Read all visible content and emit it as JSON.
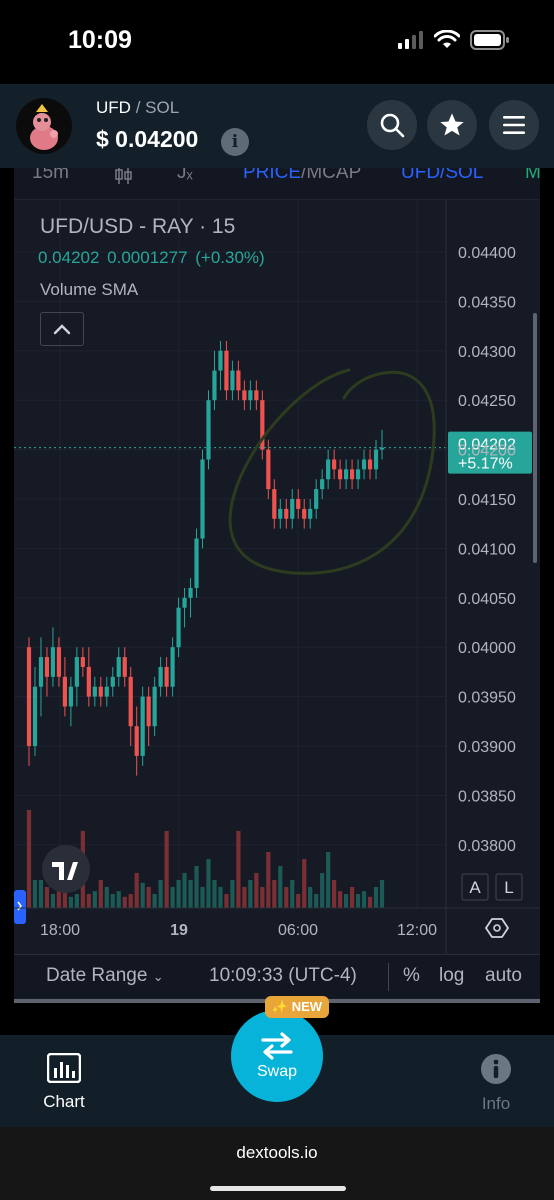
{
  "status": {
    "time": "10:09"
  },
  "header": {
    "pair_symbol": "UFD",
    "pair_separator": "/",
    "pair_quote": "SOL",
    "price": "$ 0.04200",
    "info_glyph": "i",
    "buttons": [
      "search-icon",
      "star-icon",
      "menu-icon"
    ]
  },
  "toolbar": {
    "interval": "15m",
    "indicators_glyph": "Jₓ",
    "price_label": "PRICE",
    "mcap_separator": "/MCAP",
    "pair_toggle": "UFD/SOL",
    "more_label": "M"
  },
  "chart": {
    "title": "UFD/USD - RAY · 15",
    "ohlc": "0.04202  0.0001277  (+0.30%)",
    "study": "Volume SMA",
    "last_price": "0.04202",
    "last_change": "+5.17%",
    "price_scale_buttons": [
      "A",
      "L"
    ]
  },
  "chart_data": {
    "type": "candlestick",
    "title": "UFD/USD - RAY · 15",
    "y_ticks": [
      "0.04400",
      "0.04350",
      "0.04300",
      "0.04250",
      "0.04200",
      "0.04150",
      "0.04100",
      "0.04050",
      "0.04000",
      "0.03950",
      "0.03900",
      "0.03850",
      "0.03800"
    ],
    "x_ticks": [
      "18:00",
      "19",
      "06:00",
      "12:00"
    ],
    "ylim": [
      0.0376,
      0.0446
    ],
    "last_value": 0.04202,
    "colors": {
      "up": "#26a69a",
      "down": "#ef5350",
      "annotation": "#2e3b1e"
    },
    "candles": [
      [
        0.04,
        0.0401,
        0.0388,
        0.039
      ],
      [
        0.039,
        0.0398,
        0.0389,
        0.0396
      ],
      [
        0.0396,
        0.0401,
        0.0393,
        0.0399
      ],
      [
        0.0399,
        0.04,
        0.0395,
        0.0397
      ],
      [
        0.0397,
        0.0402,
        0.0396,
        0.04
      ],
      [
        0.04,
        0.0401,
        0.0396,
        0.0397
      ],
      [
        0.0397,
        0.0399,
        0.0393,
        0.0394
      ],
      [
        0.0394,
        0.0397,
        0.0392,
        0.0396
      ],
      [
        0.0396,
        0.04,
        0.0394,
        0.0399
      ],
      [
        0.0399,
        0.04,
        0.0397,
        0.0398
      ],
      [
        0.0398,
        0.04,
        0.0394,
        0.0395
      ],
      [
        0.0395,
        0.0397,
        0.0394,
        0.0396
      ],
      [
        0.0396,
        0.0397,
        0.0394,
        0.0395
      ],
      [
        0.0395,
        0.0397,
        0.0394,
        0.0396
      ],
      [
        0.0396,
        0.0398,
        0.0395,
        0.0397
      ],
      [
        0.0397,
        0.04,
        0.0396,
        0.0399
      ],
      [
        0.0399,
        0.04,
        0.0396,
        0.0397
      ],
      [
        0.0397,
        0.0398,
        0.039,
        0.0392
      ],
      [
        0.0392,
        0.0394,
        0.0387,
        0.0389
      ],
      [
        0.0389,
        0.0396,
        0.0388,
        0.0395
      ],
      [
        0.0395,
        0.0396,
        0.039,
        0.0392
      ],
      [
        0.0392,
        0.0397,
        0.0391,
        0.0396
      ],
      [
        0.0396,
        0.0399,
        0.0395,
        0.0398
      ],
      [
        0.0398,
        0.0399,
        0.0395,
        0.0396
      ],
      [
        0.0396,
        0.0401,
        0.0395,
        0.04
      ],
      [
        0.04,
        0.0405,
        0.0399,
        0.0404
      ],
      [
        0.0404,
        0.0406,
        0.0402,
        0.0405
      ],
      [
        0.0405,
        0.0407,
        0.0403,
        0.0406
      ],
      [
        0.0406,
        0.0412,
        0.0405,
        0.0411
      ],
      [
        0.0411,
        0.042,
        0.041,
        0.0419
      ],
      [
        0.0419,
        0.0426,
        0.0418,
        0.0425
      ],
      [
        0.0425,
        0.043,
        0.0424,
        0.0428
      ],
      [
        0.0428,
        0.0431,
        0.0426,
        0.043
      ],
      [
        0.043,
        0.0431,
        0.0425,
        0.0426
      ],
      [
        0.0426,
        0.0429,
        0.0425,
        0.0428
      ],
      [
        0.0428,
        0.0429,
        0.0425,
        0.0426
      ],
      [
        0.0426,
        0.0427,
        0.0424,
        0.0425
      ],
      [
        0.0425,
        0.0427,
        0.0424,
        0.0426
      ],
      [
        0.0426,
        0.0427,
        0.0424,
        0.0425
      ],
      [
        0.0425,
        0.0426,
        0.0419,
        0.042
      ],
      [
        0.042,
        0.0421,
        0.0415,
        0.0416
      ],
      [
        0.0416,
        0.0417,
        0.0412,
        0.0413
      ],
      [
        0.0413,
        0.0415,
        0.0412,
        0.0414
      ],
      [
        0.0414,
        0.0415,
        0.0412,
        0.0413
      ],
      [
        0.0413,
        0.0416,
        0.0412,
        0.0415
      ],
      [
        0.0415,
        0.0416,
        0.0413,
        0.0414
      ],
      [
        0.0414,
        0.0415,
        0.0412,
        0.0413
      ],
      [
        0.0413,
        0.0415,
        0.0412,
        0.0414
      ],
      [
        0.0414,
        0.0417,
        0.0413,
        0.0416
      ],
      [
        0.0416,
        0.0418,
        0.0415,
        0.0417
      ],
      [
        0.0417,
        0.042,
        0.0416,
        0.0419
      ],
      [
        0.0419,
        0.042,
        0.0417,
        0.0418
      ],
      [
        0.0418,
        0.0419,
        0.0416,
        0.0417
      ],
      [
        0.0417,
        0.0419,
        0.0416,
        0.0418
      ],
      [
        0.0418,
        0.0419,
        0.0416,
        0.0417
      ],
      [
        0.0417,
        0.0419,
        0.0416,
        0.0418
      ],
      [
        0.0418,
        0.042,
        0.0417,
        0.0419
      ],
      [
        0.0419,
        0.042,
        0.0417,
        0.0418
      ],
      [
        0.0418,
        0.0421,
        0.0417,
        0.042
      ],
      [
        0.042,
        0.0422,
        0.0419,
        0.04202
      ]
    ],
    "volumes": [
      0.7,
      0.2,
      0.2,
      0.15,
      0.1,
      0.15,
      0.12,
      0.08,
      0.1,
      0.55,
      0.1,
      0.12,
      0.2,
      0.15,
      0.1,
      0.12,
      0.08,
      0.1,
      0.25,
      0.18,
      0.15,
      0.1,
      0.2,
      0.55,
      0.15,
      0.2,
      0.25,
      0.2,
      0.3,
      0.15,
      0.35,
      0.2,
      0.15,
      0.1,
      0.2,
      0.55,
      0.15,
      0.2,
      0.25,
      0.15,
      0.4,
      0.2,
      0.3,
      0.15,
      0.2,
      0.1,
      0.35,
      0.15,
      0.1,
      0.25,
      0.4,
      0.2,
      0.12,
      0.1,
      0.15,
      0.1,
      0.12,
      0.08,
      0.15,
      0.2
    ]
  },
  "bottom_bar": {
    "date_range": "Date Range",
    "time": "10:09:33 (UTC-4)",
    "percent": "%",
    "log": "log",
    "auto": "auto"
  },
  "swap": {
    "label": "Swap",
    "badge": "NEW"
  },
  "nav": {
    "chart_label": "Chart",
    "info_label": "Info"
  },
  "browser": {
    "url": "dextools.io"
  }
}
